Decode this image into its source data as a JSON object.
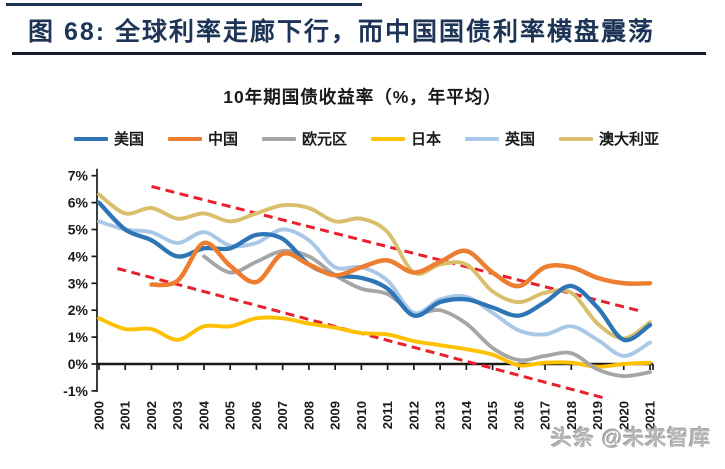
{
  "header": {
    "figure_title": "图 68:  全球利率走廊下行，而中国国债利率横盘震荡"
  },
  "watermark": {
    "text": "头条 @未来智库"
  },
  "chart_data": {
    "type": "line",
    "title": "10年期国债收益率（%，年平均）",
    "x": [
      2000,
      2001,
      2002,
      2003,
      2004,
      2005,
      2006,
      2007,
      2008,
      2009,
      2010,
      2011,
      2012,
      2013,
      2014,
      2015,
      2016,
      2017,
      2018,
      2019,
      2020,
      2021
    ],
    "ylim": [
      -1,
      7
    ],
    "ytick_step": 1,
    "ytick_suffix": "%",
    "grid": false,
    "legend_position": "top",
    "axis_color": "#1a1a1a",
    "series": [
      {
        "key": "us",
        "name": "美国",
        "color": "#2E75B6",
        "values": [
          6.0,
          5.0,
          4.6,
          4.0,
          4.3,
          4.3,
          4.8,
          4.65,
          3.7,
          3.3,
          3.2,
          2.8,
          1.8,
          2.3,
          2.4,
          2.1,
          1.8,
          2.3,
          2.9,
          2.1,
          0.9,
          1.45
        ]
      },
      {
        "key": "china",
        "name": "中国",
        "color": "#ED7D31",
        "values": [
          null,
          null,
          2.95,
          3.1,
          4.5,
          3.65,
          3.05,
          4.1,
          3.7,
          3.3,
          3.6,
          3.85,
          3.4,
          3.8,
          4.2,
          3.4,
          2.9,
          3.6,
          3.6,
          3.2,
          3.0,
          3.0
        ]
      },
      {
        "key": "eurozone",
        "name": "欧元区",
        "color": "#A5A5A5",
        "values": [
          null,
          null,
          null,
          null,
          4.0,
          3.4,
          3.8,
          4.2,
          4.0,
          3.3,
          2.8,
          2.6,
          1.9,
          2.0,
          1.5,
          0.6,
          0.15,
          0.3,
          0.4,
          -0.2,
          -0.45,
          -0.3
        ]
      },
      {
        "key": "japan",
        "name": "日本",
        "color": "#FFC000",
        "values": [
          1.7,
          1.3,
          1.3,
          0.9,
          1.4,
          1.4,
          1.7,
          1.7,
          1.5,
          1.35,
          1.15,
          1.1,
          0.85,
          0.7,
          0.55,
          0.35,
          -0.05,
          0.05,
          0.05,
          -0.1,
          0.0,
          0.05
        ]
      },
      {
        "key": "uk",
        "name": "英国",
        "color": "#A9C8E8",
        "values": [
          5.3,
          5.0,
          4.9,
          4.5,
          4.9,
          4.4,
          4.5,
          5.0,
          4.6,
          3.6,
          3.6,
          3.1,
          1.9,
          2.4,
          2.5,
          1.9,
          1.25,
          1.1,
          1.4,
          0.9,
          0.3,
          0.8
        ]
      },
      {
        "key": "australia",
        "name": "澳大利亚",
        "color": "#D9BE6B",
        "values": [
          6.3,
          5.6,
          5.8,
          5.4,
          5.6,
          5.3,
          5.6,
          5.9,
          5.8,
          5.3,
          5.4,
          4.9,
          3.4,
          3.7,
          3.7,
          2.7,
          2.3,
          2.65,
          2.65,
          1.5,
          0.95,
          1.55
        ]
      }
    ],
    "trendlines": [
      {
        "key": "upper",
        "color": "#E8202E",
        "style": "dashed",
        "from": {
          "year": 2002.0,
          "value": 6.6
        },
        "to": {
          "year": 2020.7,
          "value": 1.95
        }
      },
      {
        "key": "lower",
        "color": "#E8202E",
        "style": "dashed",
        "from": {
          "year": 2000.7,
          "value": 3.55
        },
        "to": {
          "year": 2019.4,
          "value": -1.3
        }
      }
    ]
  }
}
